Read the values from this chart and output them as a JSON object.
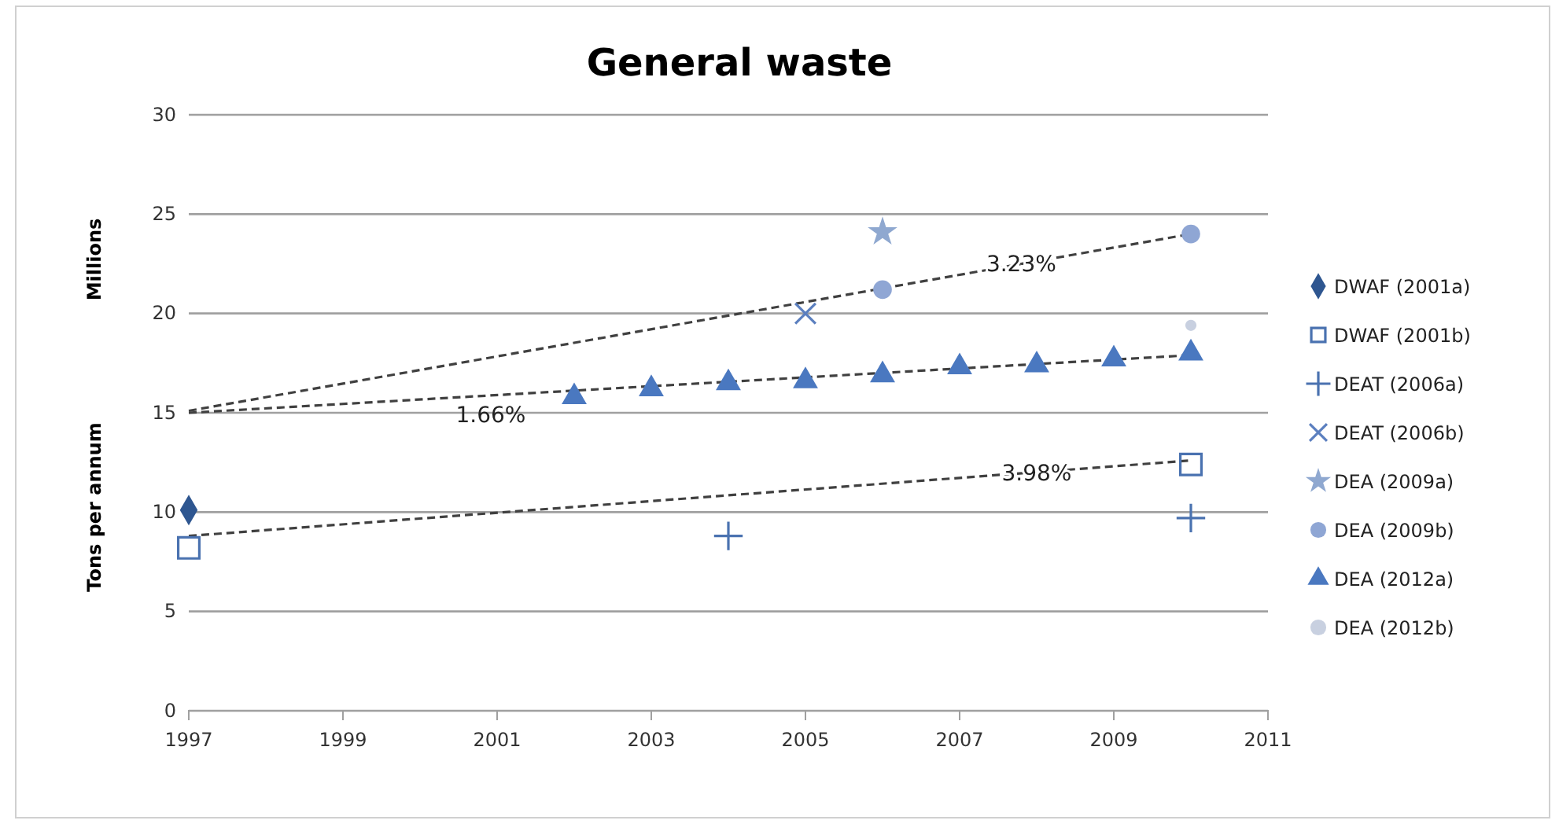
{
  "chart_data": {
    "type": "scatter",
    "title": "General waste",
    "ylabel": "Tons per annum",
    "xlim": [
      1997,
      2011
    ],
    "xticks": [
      1997,
      1999,
      2001,
      2003,
      2005,
      2007,
      2009,
      2011
    ],
    "ylim": [
      0,
      30
    ],
    "yticks": [
      0,
      5,
      10,
      15,
      20,
      25,
      30
    ],
    "grid": "y",
    "legend": "right",
    "series": [
      {
        "name": "DWAF (2001a)",
        "color": "#2e5690",
        "marker": "diamond",
        "x": [
          1997
        ],
        "values": [
          10.1
        ]
      },
      {
        "name": "DWAF (2001b)",
        "color": "#4a72b0",
        "marker": "square",
        "x": [
          1997,
          2010
        ],
        "values": [
          8.2,
          12.4
        ]
      },
      {
        "name": "DEAT (2006a)",
        "color": "#4a72b0",
        "marker": "cross",
        "x": [
          2004,
          2010
        ],
        "values": [
          8.8,
          9.7
        ]
      },
      {
        "name": "DEAT (2006b)",
        "color": "#5b7fbf",
        "marker": "x",
        "x": [
          2005
        ],
        "values": [
          20.0
        ]
      },
      {
        "name": "DEA (2009a)",
        "color": "#8fa8d0",
        "marker": "star",
        "x": [
          2006
        ],
        "values": [
          24.1
        ]
      },
      {
        "name": "DEA (2009b)",
        "color": "#8fa6d4",
        "marker": "circle",
        "x": [
          2006,
          2010
        ],
        "values": [
          21.2,
          24.0
        ]
      },
      {
        "name": "DEA (2012a)",
        "color": "#4a78c0",
        "marker": "triangle",
        "x": [
          2002,
          2003,
          2004,
          2005,
          2006,
          2007,
          2008,
          2009,
          2010
        ],
        "values": [
          15.8,
          16.2,
          16.5,
          16.6,
          16.9,
          17.3,
          17.4,
          17.7,
          18.0
        ]
      },
      {
        "name": "DEA (2012b)",
        "color": "#c8d0e0",
        "marker": "circle",
        "x": [
          2010
        ],
        "values": [
          19.4
        ]
      },
      {
        "type": "line",
        "color": "#404040",
        "line_style": "dashed",
        "marker": "none",
        "x": [
          1997,
          2010
        ],
        "values": [
          15.1,
          24.0
        ]
      },
      {
        "type": "line",
        "color": "#404040",
        "line_style": "dashed",
        "marker": "none",
        "x": [
          1997,
          2010
        ],
        "values": [
          15.0,
          17.9
        ]
      },
      {
        "type": "line",
        "color": "#404040",
        "line_style": "dashed",
        "marker": "none",
        "x": [
          1997,
          2010
        ],
        "values": [
          8.8,
          12.6
        ]
      }
    ],
    "annotations": [
      "Millions",
      {
        "text": "3.23%",
        "x": 2007.8,
        "y": 22.5
      },
      "1.66%",
      {
        "text": "3.98%",
        "x": 2008.0,
        "y": 12.0
      }
    ]
  }
}
